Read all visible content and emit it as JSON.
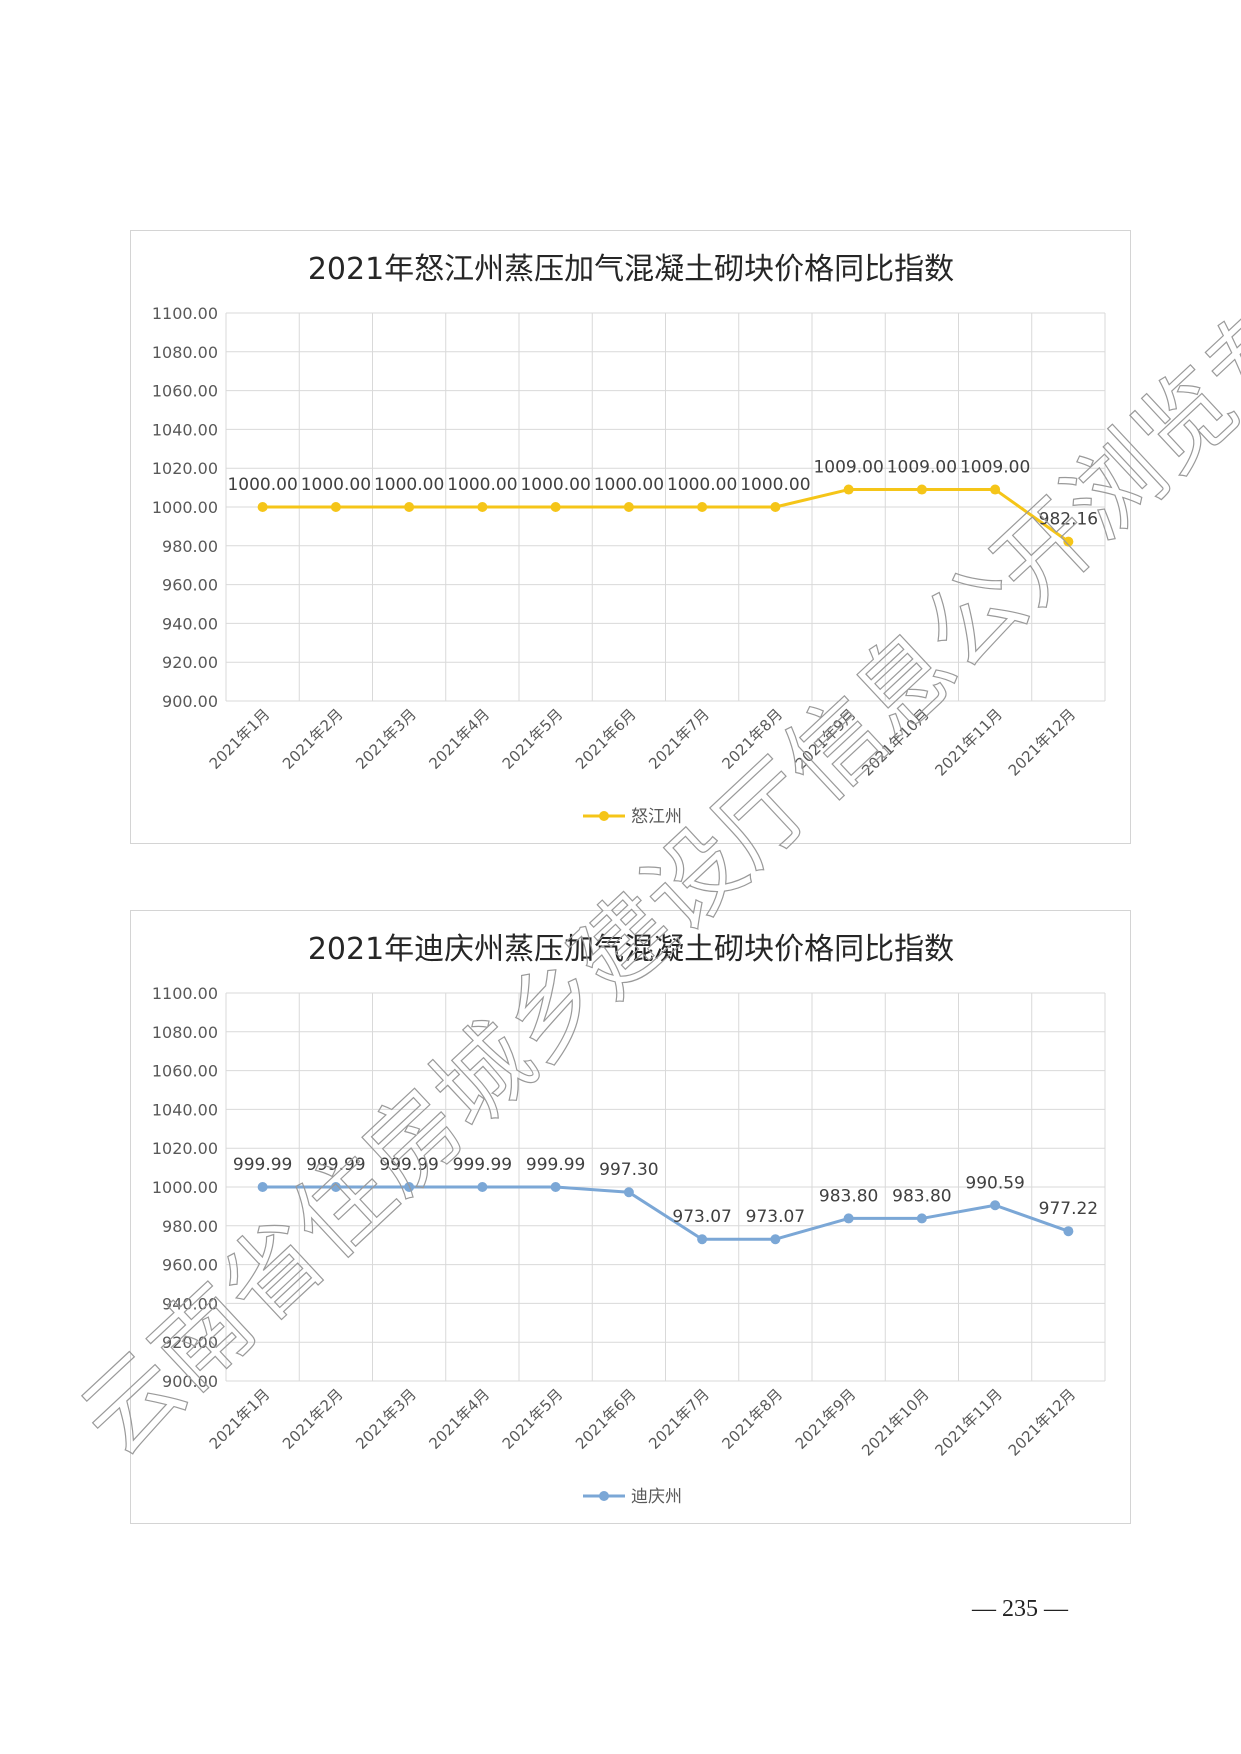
{
  "page_number": "— 235 —",
  "watermark_text": "云南省住房城乡建设厅信息公开浏览专用",
  "chart_data": [
    {
      "type": "line",
      "title": "2021年怒江州蒸压加气混凝土砌块价格同比指数",
      "categories": [
        "2021年1月",
        "2021年2月",
        "2021年3月",
        "2021年4月",
        "2021年5月",
        "2021年6月",
        "2021年7月",
        "2021年8月",
        "2021年9月",
        "2021年10月",
        "2021年11月",
        "2021年12月"
      ],
      "series": [
        {
          "name": "怒江州",
          "color": "#F5C518",
          "values": [
            1000.0,
            1000.0,
            1000.0,
            1000.0,
            1000.0,
            1000.0,
            1000.0,
            1000.0,
            1009.0,
            1009.0,
            1009.0,
            982.16
          ],
          "labels": [
            "1000.00",
            "1000.00",
            "1000.00",
            "1000.00",
            "1000.00",
            "1000.00",
            "1000.00",
            "1000.00",
            "1009.00",
            "1009.00",
            "1009.00",
            "982.16"
          ]
        }
      ],
      "ylim": [
        900,
        1100
      ],
      "yticks": [
        "900.00",
        "920.00",
        "940.00",
        "960.00",
        "980.00",
        "1000.00",
        "1020.00",
        "1040.00",
        "1060.00",
        "1080.00",
        "1100.00"
      ],
      "grid": true,
      "legend": "bottom"
    },
    {
      "type": "line",
      "title": "2021年迪庆州蒸压加气混凝土砌块价格同比指数",
      "categories": [
        "2021年1月",
        "2021年2月",
        "2021年3月",
        "2021年4月",
        "2021年5月",
        "2021年6月",
        "2021年7月",
        "2021年8月",
        "2021年9月",
        "2021年10月",
        "2021年11月",
        "2021年12月"
      ],
      "series": [
        {
          "name": "迪庆州",
          "color": "#7BA7D6",
          "values": [
            999.99,
            999.99,
            999.99,
            999.99,
            999.99,
            997.3,
            973.07,
            973.07,
            983.8,
            983.8,
            990.59,
            977.22
          ],
          "labels": [
            "999.99",
            "999.99",
            "999.99",
            "999.99",
            "999.99",
            "997.30",
            "973.07",
            "973.07",
            "983.80",
            "983.80",
            "990.59",
            "977.22"
          ]
        }
      ],
      "ylim": [
        900,
        1100
      ],
      "yticks": [
        "900.00",
        "920.00",
        "940.00",
        "960.00",
        "980.00",
        "1000.00",
        "1020.00",
        "1040.00",
        "1060.00",
        "1080.00",
        "1100.00"
      ],
      "grid": true,
      "legend": "bottom"
    }
  ]
}
